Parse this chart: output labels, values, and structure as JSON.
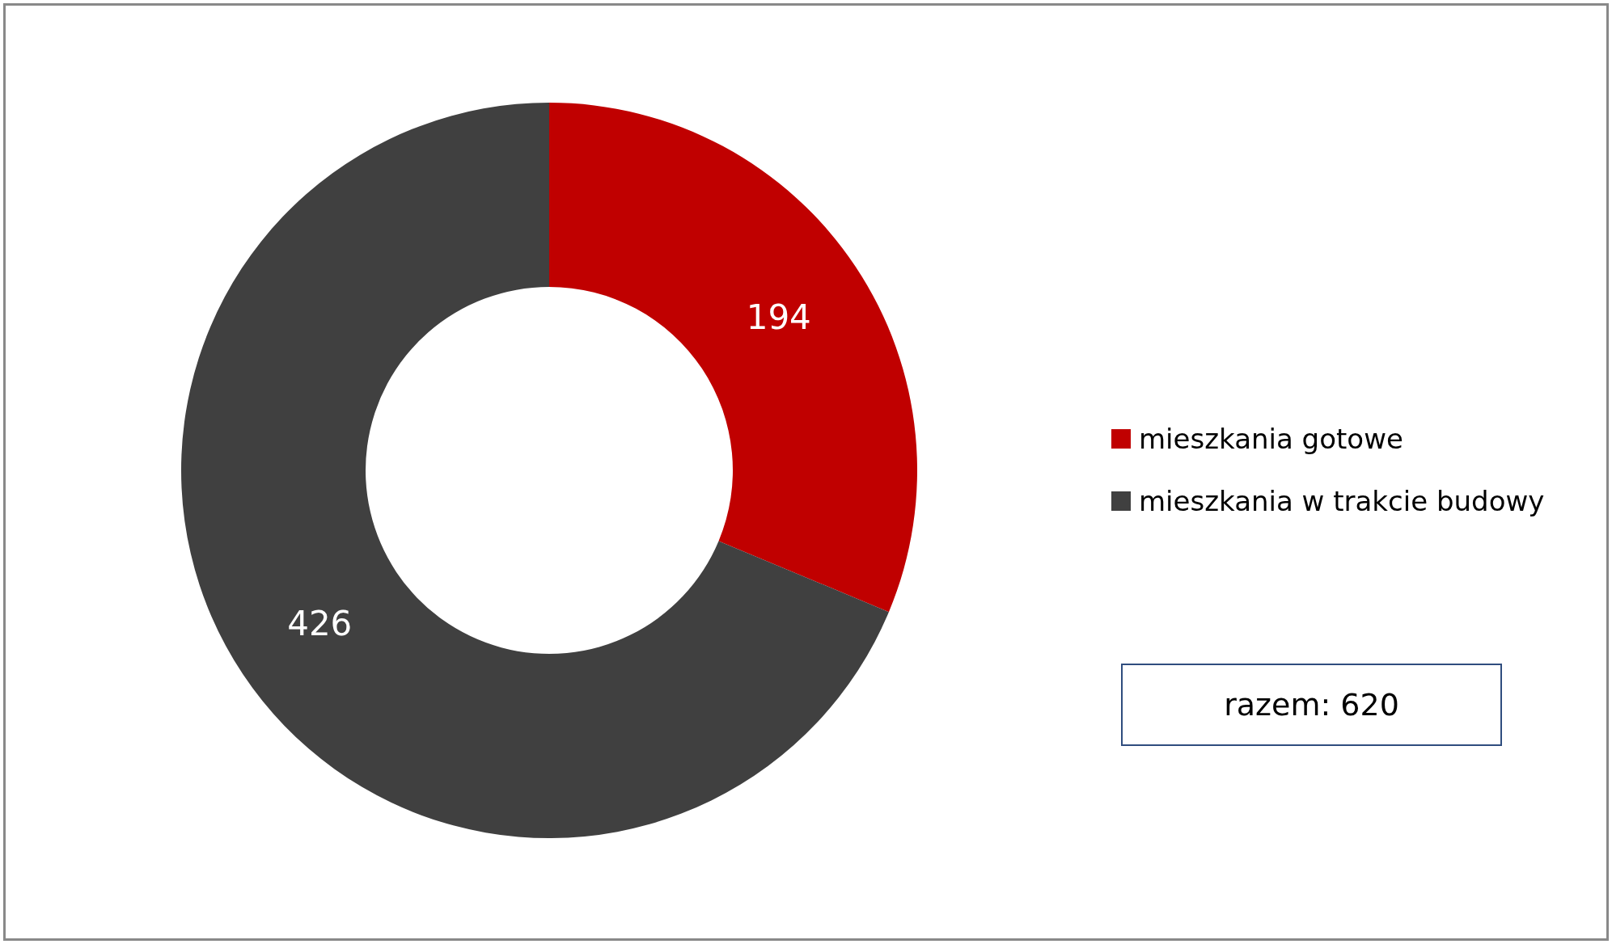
{
  "chart_data": {
    "type": "donut",
    "categories": [
      "mieszkania gotowe",
      "mieszkania w trakcie budowy"
    ],
    "values": [
      194,
      426
    ],
    "colors": [
      "#c00000",
      "#404040"
    ],
    "data_labels": true,
    "legend": "right",
    "annotations": [
      "razem: 620"
    ]
  }
}
